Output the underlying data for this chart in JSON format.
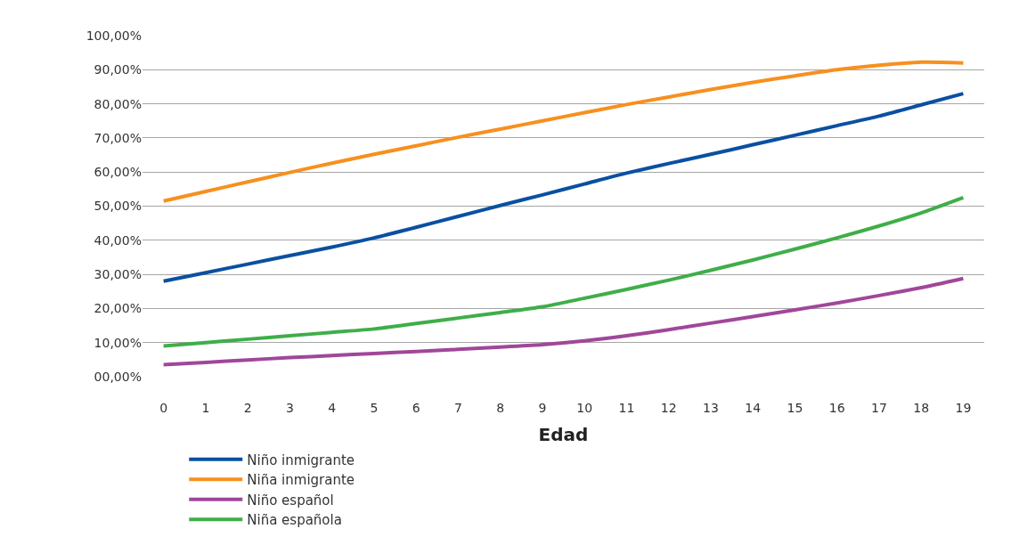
{
  "chart_data": {
    "type": "line",
    "xlabel": "Edad",
    "x": [
      0,
      1,
      2,
      3,
      4,
      5,
      6,
      7,
      8,
      9,
      10,
      11,
      12,
      13,
      14,
      15,
      16,
      17,
      18,
      19
    ],
    "xlim": [
      -0.5,
      19.5
    ],
    "xticks": [
      0,
      1,
      2,
      3,
      4,
      5,
      6,
      7,
      8,
      9,
      10,
      11,
      12,
      13,
      14,
      15,
      16,
      17,
      18,
      19
    ],
    "ylim": [
      0,
      100
    ],
    "yticks": [
      {
        "value": 0,
        "label": "00,00%"
      },
      {
        "value": 10,
        "label": "10,00%"
      },
      {
        "value": 20,
        "label": "20,00%"
      },
      {
        "value": 30,
        "label": "30,00%"
      },
      {
        "value": 40,
        "label": "40,00%"
      },
      {
        "value": 50,
        "label": "50,00%"
      },
      {
        "value": 60,
        "label": "60,00%"
      },
      {
        "value": 70,
        "label": "70,00%"
      },
      {
        "value": 80,
        "label": "80,00%"
      },
      {
        "value": 90,
        "label": "90,00%"
      },
      {
        "value": 100,
        "label": "100,00%"
      }
    ],
    "grid": "y",
    "legend": "bottom",
    "marker": "none",
    "line_style": "solid",
    "series": [
      {
        "name": "Niño inmigrante",
        "color": "#0a50a1",
        "values": [
          28,
          30.5,
          33,
          35.5,
          38,
          40.7,
          43.8,
          47,
          50.2,
          53.3,
          56.5,
          59.7,
          62.5,
          65.2,
          68,
          70.8,
          73.6,
          76.4,
          79.7,
          83
        ]
      },
      {
        "name": "Niña inmigrante",
        "color": "#f7901e",
        "values": [
          51.5,
          54.3,
          57.1,
          59.9,
          62.6,
          65.2,
          67.7,
          70.2,
          72.6,
          75,
          77.4,
          79.8,
          82,
          84.2,
          86.3,
          88.2,
          90,
          91.3,
          92.2,
          92
        ]
      },
      {
        "name": "Niño español",
        "color": "#a0479a",
        "values": [
          3.5,
          4.2,
          4.9,
          5.6,
          6.2,
          6.8,
          7.4,
          8,
          8.7,
          9.4,
          10.5,
          12,
          13.8,
          15.7,
          17.6,
          19.6,
          21.6,
          23.8,
          26.1,
          28.8
        ]
      },
      {
        "name": "Niña española",
        "color": "#3fae49",
        "values": [
          9,
          10,
          11,
          12,
          13,
          14,
          15.6,
          17.2,
          18.8,
          20.5,
          23,
          25.6,
          28.3,
          31.2,
          34.2,
          37.4,
          40.7,
          44.2,
          48,
          52.5
        ]
      }
    ]
  }
}
